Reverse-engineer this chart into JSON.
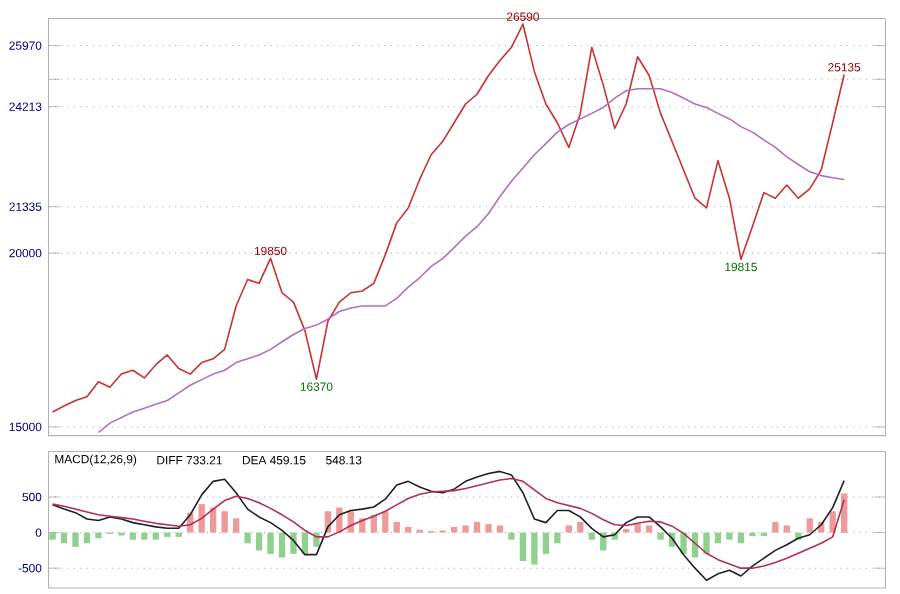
{
  "chart_data": [
    {
      "type": "line",
      "categories": [
        null,
        null,
        null,
        null,
        null,
        null,
        null,
        null,
        null,
        null,
        null,
        null,
        null,
        null,
        null,
        null,
        null,
        null,
        null,
        null,
        null,
        null,
        null,
        null,
        null,
        null,
        null,
        null,
        null,
        null,
        null,
        null,
        null,
        null,
        null,
        null,
        null,
        null,
        null,
        null,
        null,
        null,
        null,
        null,
        null,
        null,
        null,
        null,
        null,
        null,
        null,
        null,
        null,
        null,
        null,
        null,
        null,
        null,
        null,
        null,
        null,
        null,
        null,
        null,
        null,
        null,
        null,
        null,
        null,
        null
      ],
      "series": [
        {
          "color": "#c83232",
          "values": [
            15430,
            15600,
            15760,
            15870,
            16300,
            16140,
            16520,
            16630,
            16410,
            16790,
            17070,
            16680,
            16520,
            16850,
            16960,
            17230,
            18480,
            19240,
            19130,
            19850,
            18860,
            18590,
            17770,
            16370,
            18040,
            18590,
            18860,
            18910,
            19130,
            19950,
            20870,
            21300,
            22120,
            22830,
            23210,
            23750,
            24290,
            24570,
            25110,
            25540,
            25920,
            26590,
            25220,
            24290,
            23750,
            23040,
            24020,
            25920,
            24840,
            23590,
            24290,
            25650,
            25110,
            24020,
            23210,
            22390,
            21580,
            21300,
            22660,
            21580,
            19820,
            20760,
            21740,
            21580,
            21960,
            21580,
            21850,
            22390,
            23750,
            25140
          ]
        },
        {
          "color": "#b070c0",
          "values": [
            null,
            null,
            null,
            null,
            14840,
            15110,
            15270,
            15430,
            15540,
            15650,
            15760,
            15980,
            16200,
            16360,
            16520,
            16630,
            16850,
            16960,
            17070,
            17230,
            17450,
            17660,
            17830,
            17930,
            18100,
            18320,
            18420,
            18480,
            18480,
            18480,
            18700,
            19020,
            19290,
            19620,
            19840,
            20160,
            20490,
            20760,
            21140,
            21630,
            22070,
            22450,
            22830,
            23150,
            23480,
            23700,
            23860,
            24020,
            24190,
            24460,
            24670,
            24730,
            24730,
            24730,
            24620,
            24460,
            24290,
            24190,
            24020,
            23860,
            23640,
            23480,
            23260,
            23040,
            22770,
            22550,
            22340,
            22230,
            22170,
            22120
          ]
        }
      ],
      "ylim": [
        14750,
        26750
      ],
      "yticks": [
        15000,
        20000,
        {
          "value": 25000,
          "label": null
        },
        21335,
        24213,
        25970
      ],
      "grid": "y",
      "annotations": [
        {
          "text": "19850",
          "y": 19850
        },
        {
          "text": "16370",
          "y": 16370
        },
        {
          "text": "26590",
          "y": 26590
        },
        {
          "text": "19815",
          "y": 19815
        },
        {
          "text": "25135",
          "y": 25135
        }
      ]
    },
    {
      "type": "line",
      "categories": [
        null,
        null,
        null,
        null,
        null,
        null,
        null,
        null,
        null,
        null,
        null,
        null,
        null,
        null,
        null,
        null,
        null,
        null,
        null,
        null,
        null,
        null,
        null,
        null,
        null,
        null,
        null,
        null,
        null,
        null,
        null,
        null,
        null,
        null,
        null,
        null,
        null,
        null,
        null,
        null,
        null,
        null,
        null,
        null,
        null,
        null,
        null,
        null,
        null,
        null,
        null,
        null,
        null,
        null,
        null,
        null,
        null,
        null,
        null,
        null,
        null,
        null,
        null,
        null,
        null,
        null,
        null,
        null,
        null,
        null
      ],
      "series": [
        {
          "type": "bar",
          "colors": [
            "#90d090",
            "#90d090",
            "#90d090",
            "#90d090",
            "#90d090",
            "#90d090",
            "#90d090",
            "#90d090",
            "#90d090",
            "#90d090",
            "#90d090",
            "#90d090",
            "#ee9a9a",
            "#ee9a9a",
            "#ee9a9a",
            "#ee9a9a",
            "#ee9a9a",
            "#90d090",
            "#90d090",
            "#90d090",
            "#90d090",
            "#90d090",
            "#90d090",
            "#90d090",
            "#ee9a9a",
            "#ee9a9a",
            "#ee9a9a",
            "#ee9a9a",
            "#ee9a9a",
            "#ee9a9a",
            "#ee9a9a",
            "#ee9a9a",
            "#ee9a9a",
            "#ee9a9a",
            "#ee9a9a",
            "#ee9a9a",
            "#ee9a9a",
            "#ee9a9a",
            "#ee9a9a",
            "#ee9a9a",
            "#90d090",
            "#90d090",
            "#90d090",
            "#90d090",
            "#90d090",
            "#ee9a9a",
            "#ee9a9a",
            "#90d090",
            "#90d090",
            "#90d090",
            "#ee9a9a",
            "#ee9a9a",
            "#ee9a9a",
            "#90d090",
            "#90d090",
            "#90d090",
            "#90d090",
            "#90d090",
            "#90d090",
            "#90d090",
            "#90d090",
            "#90d090",
            "#90d090",
            "#ee9a9a",
            "#ee9a9a",
            "#90d090",
            "#ee9a9a",
            "#ee9a9a",
            "#ee9a9a",
            "#ee9a9a"
          ],
          "values": [
            -100,
            -150,
            -200,
            -150,
            -80,
            -20,
            -40,
            -100,
            -100,
            -100,
            -60,
            -60,
            280,
            400,
            350,
            300,
            200,
            -150,
            -250,
            -300,
            -350,
            -300,
            -300,
            -200,
            300,
            350,
            300,
            200,
            250,
            300,
            150,
            80,
            40,
            20,
            30,
            80,
            100,
            150,
            120,
            100,
            -100,
            -400,
            -450,
            -300,
            -150,
            100,
            150,
            -100,
            -250,
            -100,
            50,
            120,
            100,
            -100,
            -200,
            -300,
            -350,
            -300,
            -150,
            -100,
            -150,
            -50,
            -50,
            150,
            100,
            -100,
            200,
            150,
            300,
            550
          ]
        },
        {
          "color": "#202020",
          "values": [
            390,
            330,
            280,
            190,
            170,
            220,
            190,
            140,
            110,
            80,
            60,
            60,
            250,
            530,
            720,
            750,
            560,
            330,
            220,
            140,
            30,
            -110,
            -310,
            -310,
            80,
            250,
            310,
            330,
            360,
            470,
            670,
            720,
            640,
            580,
            560,
            610,
            720,
            780,
            830,
            860,
            810,
            560,
            190,
            140,
            310,
            310,
            220,
            60,
            -60,
            -30,
            140,
            220,
            220,
            80,
            -80,
            -310,
            -500,
            -670,
            -580,
            -530,
            -610,
            -470,
            -360,
            -250,
            -170,
            -80,
            -30,
            110,
            350,
            730
          ]
        },
        {
          "color": "#b03050",
          "values": [
            400,
            370,
            330,
            290,
            250,
            230,
            210,
            190,
            160,
            130,
            110,
            90,
            110,
            200,
            330,
            450,
            510,
            480,
            420,
            340,
            250,
            150,
            30,
            -60,
            -60,
            10,
            100,
            170,
            230,
            300,
            390,
            480,
            540,
            570,
            580,
            590,
            620,
            660,
            700,
            740,
            760,
            720,
            600,
            480,
            420,
            380,
            340,
            270,
            180,
            110,
            100,
            130,
            160,
            150,
            90,
            -10,
            -150,
            -290,
            -380,
            -440,
            -500,
            -500,
            -470,
            -420,
            -360,
            -290,
            -220,
            -150,
            -60,
            460
          ]
        }
      ],
      "ylim": [
        -780,
        1140
      ],
      "yticks": [
        -500,
        0,
        500
      ],
      "grid": "y",
      "annotations": [
        "MACD(12,26,9)",
        "DIFF 733.21",
        "DEA 459.15",
        "548.13"
      ]
    }
  ]
}
